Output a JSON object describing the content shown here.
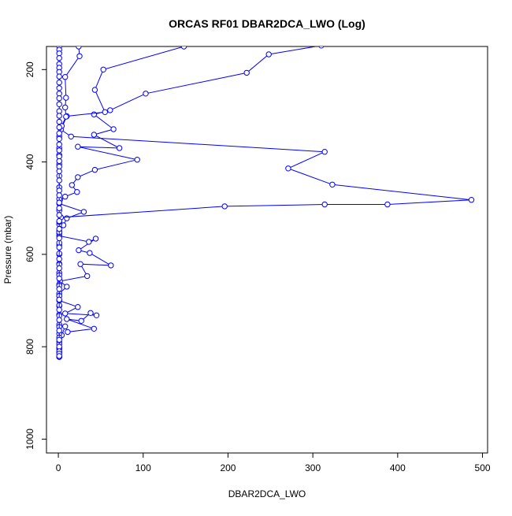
{
  "chart_data": {
    "type": "scatter",
    "title": "ORCAS RF01 DBAR2DCA_LWO (Log)",
    "xlabel": "DBAR2DCA_LWO",
    "ylabel": "Pressure (mbar)",
    "xlim": [
      -14,
      506
    ],
    "ylim": [
      1030,
      150
    ],
    "y_reversed": true,
    "grid": false,
    "legend": "none",
    "colors": {
      "series": "#0000ff",
      "axes": "#000000"
    },
    "x_ticks": [
      0,
      100,
      200,
      300,
      400,
      500
    ],
    "x_tick_labels": [
      "0",
      "100",
      "200",
      "300",
      "400",
      "500"
    ],
    "y_ticks": [
      200,
      400,
      600,
      800,
      1000
    ],
    "y_tick_labels": [
      "200",
      "400",
      "600",
      "800",
      "1000"
    ],
    "series": [
      {
        "points": [
          [
            310,
            148
          ],
          [
            248,
            167
          ],
          [
            222,
            207
          ],
          [
            103,
            252
          ],
          [
            61,
            288
          ],
          [
            42,
            297
          ],
          [
            65,
            329
          ],
          [
            42,
            341
          ],
          [
            72,
            370
          ],
          [
            23,
            367
          ],
          [
            93,
            395
          ],
          [
            43,
            417
          ],
          [
            23,
            433
          ],
          [
            16,
            450
          ],
          [
            22,
            465
          ],
          [
            8,
            475
          ],
          [
            2,
            482
          ],
          [
            1,
            490
          ],
          [
            30,
            508
          ],
          [
            10,
            522
          ],
          [
            6,
            537
          ],
          [
            1,
            550
          ],
          [
            1,
            560
          ],
          [
            36,
            573
          ],
          [
            44,
            566
          ],
          [
            24,
            591
          ],
          [
            37,
            597
          ],
          [
            62,
            624
          ],
          [
            26,
            621
          ],
          [
            34,
            647
          ],
          [
            2,
            658
          ],
          [
            10,
            670
          ],
          [
            1,
            685
          ],
          [
            1,
            700
          ],
          [
            23,
            714
          ],
          [
            8,
            728
          ],
          [
            45,
            732
          ],
          [
            38,
            727
          ],
          [
            27,
            744
          ],
          [
            10,
            740
          ],
          [
            42,
            761
          ],
          [
            11,
            768
          ],
          [
            8,
            756
          ],
          [
            4,
            775
          ],
          [
            1,
            790
          ],
          [
            1,
            805
          ],
          [
            1,
            822
          ]
        ]
      },
      {
        "points": [
          [
            148,
            150
          ],
          [
            53,
            200
          ],
          [
            43,
            244
          ],
          [
            55,
            292
          ],
          [
            10,
            301
          ],
          [
            3,
            330
          ],
          [
            15,
            345
          ],
          [
            314,
            378
          ],
          [
            271,
            414
          ],
          [
            323,
            449
          ],
          [
            487,
            482
          ],
          [
            388,
            492
          ],
          [
            314,
            492
          ],
          [
            196,
            496
          ],
          [
            3,
            520
          ],
          [
            1,
            535
          ],
          [
            1,
            555
          ],
          [
            1,
            580
          ],
          [
            1,
            600
          ],
          [
            1,
            620
          ],
          [
            1,
            640
          ],
          [
            1,
            665
          ],
          [
            1,
            690
          ],
          [
            1,
            712
          ],
          [
            1,
            730
          ],
          [
            1,
            752
          ],
          [
            1,
            772
          ],
          [
            1,
            795
          ],
          [
            1,
            812
          ],
          [
            1,
            822
          ]
        ]
      },
      {
        "points": [
          [
            24,
            150
          ],
          [
            25,
            171
          ],
          [
            8,
            216
          ],
          [
            9,
            261
          ],
          [
            8,
            282
          ],
          [
            9,
            302
          ],
          [
            4,
            322
          ],
          [
            1,
            345
          ],
          [
            1,
            370
          ],
          [
            1,
            385
          ],
          [
            1,
            405
          ],
          [
            1,
            430
          ],
          [
            1,
            455
          ],
          [
            1,
            480
          ],
          [
            1,
            505
          ],
          [
            1,
            530
          ],
          [
            1,
            552
          ],
          [
            1,
            575
          ],
          [
            1,
            598
          ],
          [
            1,
            622
          ],
          [
            1,
            645
          ],
          [
            1,
            668
          ],
          [
            1,
            690
          ],
          [
            1,
            710
          ],
          [
            1,
            733
          ],
          [
            1,
            757
          ],
          [
            1,
            780
          ],
          [
            1,
            803
          ],
          [
            1,
            822
          ]
        ]
      },
      {
        "points": [
          [
            1,
            150
          ],
          [
            1,
            157
          ],
          [
            1,
            165
          ],
          [
            1,
            175
          ],
          [
            1,
            188
          ],
          [
            1,
            196
          ],
          [
            1,
            205
          ],
          [
            1,
            215
          ],
          [
            1,
            228
          ],
          [
            1,
            240
          ],
          [
            1,
            252
          ],
          [
            1,
            262
          ],
          [
            1,
            275
          ],
          [
            1,
            290
          ],
          [
            1,
            300
          ],
          [
            1,
            313
          ],
          [
            1,
            325
          ],
          [
            1,
            338
          ],
          [
            1,
            350
          ],
          [
            1,
            362
          ],
          [
            1,
            375
          ],
          [
            1,
            388
          ],
          [
            1,
            398
          ],
          [
            1,
            410
          ],
          [
            1,
            420
          ],
          [
            1,
            440
          ],
          [
            1,
            462
          ],
          [
            1,
            472
          ],
          [
            1,
            488
          ],
          [
            1,
            500
          ],
          [
            1,
            515
          ],
          [
            1,
            528
          ],
          [
            1,
            545
          ],
          [
            1,
            565
          ],
          [
            1,
            585
          ],
          [
            1,
            610
          ],
          [
            1,
            630
          ],
          [
            1,
            652
          ],
          [
            1,
            675
          ],
          [
            1,
            698
          ],
          [
            1,
            720
          ],
          [
            1,
            742
          ],
          [
            1,
            765
          ],
          [
            1,
            785
          ],
          [
            1,
            800
          ],
          [
            1,
            810
          ],
          [
            1,
            815
          ],
          [
            1,
            820
          ]
        ]
      }
    ]
  }
}
